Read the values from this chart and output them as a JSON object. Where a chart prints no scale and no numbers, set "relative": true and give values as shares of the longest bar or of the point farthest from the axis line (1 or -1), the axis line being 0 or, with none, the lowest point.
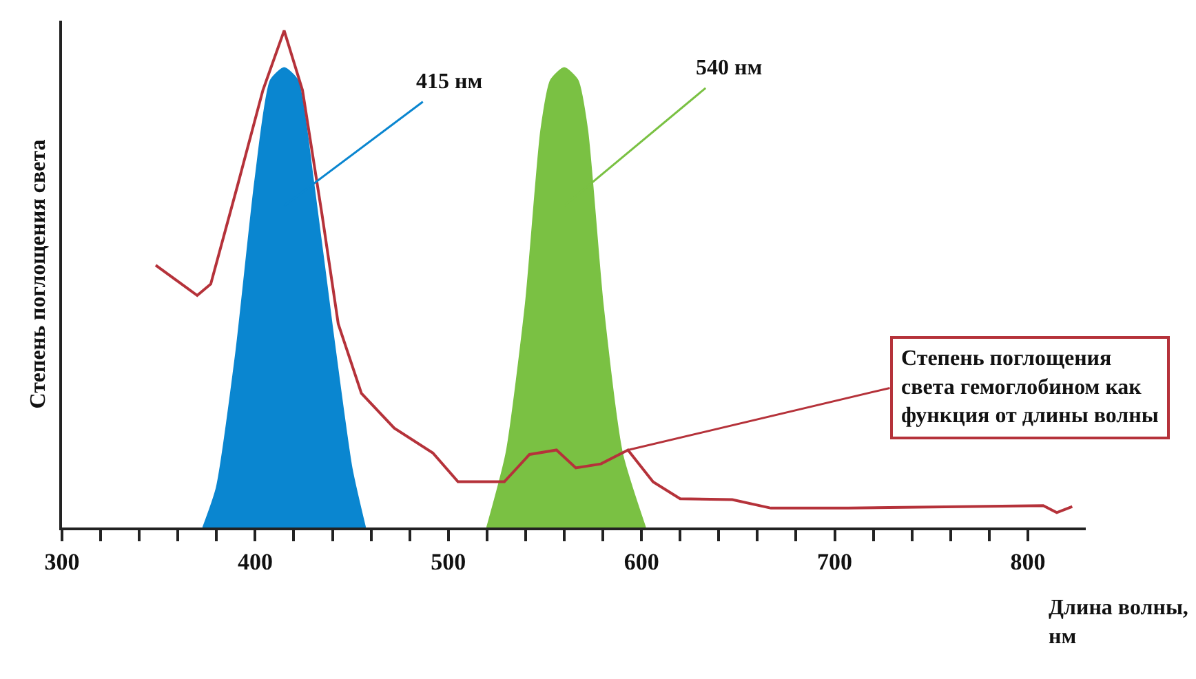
{
  "chart_data": {
    "type": "area",
    "relative": true,
    "ylabel": "Степень поглощения света",
    "xlabel": "Длина волны,\nнм",
    "xlim": [
      300,
      830
    ],
    "xticks": [
      300,
      {
        "value": 320,
        "label": null
      },
      {
        "value": 340,
        "label": null
      },
      {
        "value": 360,
        "label": null
      },
      {
        "value": 380,
        "label": null
      },
      400,
      {
        "value": 420,
        "label": null
      },
      {
        "value": 440,
        "label": null
      },
      {
        "value": 460,
        "label": null
      },
      {
        "value": 480,
        "label": null
      },
      500,
      {
        "value": 520,
        "label": null
      },
      {
        "value": 540,
        "label": null
      },
      {
        "value": 560,
        "label": null
      },
      {
        "value": 580,
        "label": null
      },
      600,
      {
        "value": 620,
        "label": null
      },
      {
        "value": 640,
        "label": null
      },
      {
        "value": 660,
        "label": null
      },
      {
        "value": 680,
        "label": null
      },
      700,
      {
        "value": 720,
        "label": null
      },
      {
        "value": 740,
        "label": null
      },
      {
        "value": 760,
        "label": null
      },
      {
        "value": 780,
        "label": null
      },
      800
    ],
    "tick_labels": "x",
    "series": [
      {
        "color": "#0a86d0",
        "x": [
          373,
          380,
          390,
          400,
          408,
          415,
          422,
          430,
          440,
          450,
          457
        ],
        "values": [
          0,
          0.08,
          0.35,
          0.7,
          0.9,
          0.925,
          0.9,
          0.7,
          0.4,
          0.12,
          0
        ]
      },
      {
        "color": "#7ac143",
        "x": [
          520,
          530,
          540,
          548,
          553,
          560,
          567,
          572,
          580,
          590,
          602
        ],
        "values": [
          0,
          0.15,
          0.45,
          0.8,
          0.9,
          0.925,
          0.9,
          0.8,
          0.45,
          0.15,
          0
        ]
      },
      {
        "type": "line",
        "color": "#b5323a",
        "x": [
          348.5,
          370,
          377,
          391,
          404,
          415,
          424.5,
          434.6,
          443,
          455,
          472,
          492,
          505,
          529,
          542,
          556,
          566,
          579,
          593,
          606,
          620,
          647,
          667,
          707,
          808,
          815,
          823
        ],
        "values": [
          0.528,
          0.467,
          0.49,
          0.69,
          0.88,
          1.0,
          0.88,
          0.63,
          0.41,
          0.27,
          0.2,
          0.15,
          0.092,
          0.092,
          0.147,
          0.156,
          0.12,
          0.128,
          0.156,
          0.092,
          0.058,
          0.056,
          0.039,
          0.039,
          0.044,
          0.03,
          0.042
        ]
      }
    ],
    "annotations": [
      "415 нм",
      "540 нм",
      {
        "text": "Степень поглощения\nсвета гемоглобином как\nфункция от длины волны",
        "x": 593,
        "y": 0.156
      }
    ]
  }
}
